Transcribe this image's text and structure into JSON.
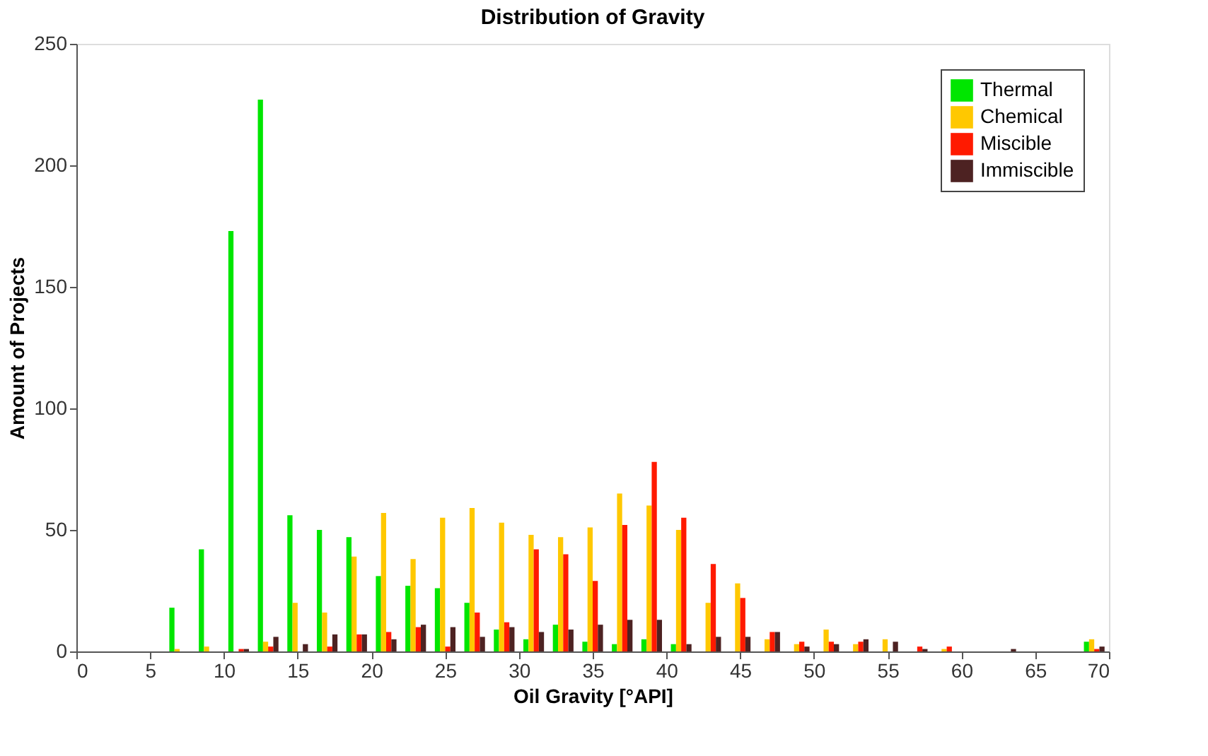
{
  "chart_data": {
    "type": "bar",
    "title": "Distribution of Gravity",
    "xlabel": "Oil Gravity [°API]",
    "ylabel": "Amount of Projects",
    "x": [
      7,
      9,
      11,
      13,
      15,
      17,
      19,
      21,
      23,
      25,
      27,
      29,
      31,
      33,
      35,
      37,
      39,
      41,
      43,
      45,
      47,
      49,
      51,
      53,
      55,
      57,
      59,
      61,
      63,
      65,
      67,
      69
    ],
    "series": [
      {
        "name": "Thermal",
        "color": "#00e600",
        "values": [
          18,
          42,
          173,
          227,
          56,
          50,
          47,
          31,
          27,
          26,
          20,
          9,
          5,
          11,
          4,
          3,
          5,
          3,
          0,
          0,
          0,
          0,
          0,
          0,
          0,
          0,
          0,
          0,
          0,
          0,
          0,
          4
        ]
      },
      {
        "name": "Chemical",
        "color": "#ffc800",
        "values": [
          1,
          2,
          0,
          4,
          20,
          16,
          39,
          57,
          38,
          55,
          59,
          53,
          48,
          47,
          51,
          65,
          60,
          50,
          20,
          28,
          5,
          3,
          9,
          3,
          5,
          0,
          1,
          0,
          0,
          0,
          0,
          5
        ]
      },
      {
        "name": "Miscible",
        "color": "#ff1a00",
        "values": [
          0,
          0,
          1,
          2,
          0,
          2,
          7,
          8,
          10,
          2,
          16,
          12,
          42,
          40,
          29,
          52,
          78,
          55,
          36,
          22,
          8,
          4,
          4,
          4,
          0,
          2,
          2,
          0,
          0,
          0,
          0,
          1
        ]
      },
      {
        "name": "Immiscible",
        "color": "#4d2222",
        "values": [
          0,
          0,
          1,
          6,
          3,
          7,
          7,
          5,
          11,
          10,
          6,
          10,
          8,
          9,
          11,
          13,
          13,
          3,
          6,
          6,
          8,
          2,
          3,
          5,
          4,
          1,
          0,
          0,
          1,
          0,
          0,
          2
        ]
      }
    ],
    "xlim": [
      0,
      70
    ],
    "xticks": [
      0,
      5,
      10,
      15,
      20,
      25,
      30,
      35,
      40,
      45,
      50,
      55,
      60,
      65,
      70
    ],
    "ylim": [
      0,
      250
    ],
    "yticks": [
      0,
      50,
      100,
      150,
      200,
      250
    ],
    "grid": false,
    "legend": "top right"
  }
}
